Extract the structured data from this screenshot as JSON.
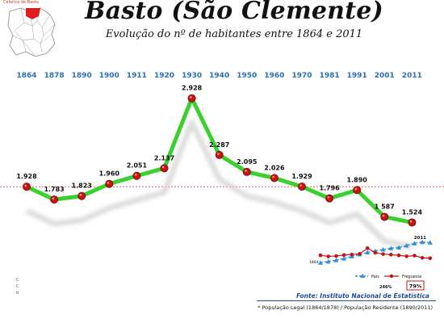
{
  "header": {
    "title": "Basto (São Clemente)",
    "subtitle": "Evolução do nº de habitantes entre 1864 e 2011",
    "map_label": "Celorico de Basto"
  },
  "chart_data": [
    {
      "type": "line",
      "title": "Basto (São Clemente)",
      "subtitle": "Evolução do nº de habitantes entre 1864 e 2011",
      "categories": [
        "1864",
        "1878",
        "1890",
        "1900",
        "1911",
        "1920",
        "1930",
        "1940",
        "1950",
        "1960",
        "1970",
        "1981",
        "1991",
        "2001",
        "2011"
      ],
      "labels": [
        "1.928",
        "1.783",
        "1.823",
        "1.960",
        "2.051",
        "2.137",
        "2.928",
        "2.287",
        "2.095",
        "2.026",
        "1.929",
        "1.796",
        "1.890",
        "1 587",
        "1.524"
      ],
      "values": [
        1928,
        1783,
        1823,
        1960,
        2051,
        2137,
        2928,
        2287,
        2095,
        2026,
        1929,
        1796,
        1890,
        1587,
        1524
      ],
      "ylim": [
        1300,
        3400
      ],
      "reference_line": 1928,
      "colors": {
        "line": "#39d12e",
        "marker": "#c41414",
        "year_labels": "#2b6fb7",
        "reference": "#e83030"
      }
    },
    {
      "type": "line",
      "inset": true,
      "series": [
        {
          "name": "País",
          "style": "dashed-triangles",
          "color": "#2f8fd8",
          "values": [
            100,
            108,
            118,
            130,
            145,
            160,
            175,
            185,
            195,
            205,
            210,
            225,
            240,
            250,
            246
          ]
        },
        {
          "name": "Freguesia",
          "style": "solid-circles",
          "color": "#c41414",
          "values": [
            100,
            92,
            95,
            102,
            106,
            111,
            152,
            119,
            109,
            105,
            100,
            93,
            98,
            82,
            79
          ]
        }
      ],
      "labels": {
        "top_right": "2011",
        "left": "1864",
        "pais_value": "246%",
        "freguesia_value": "79%"
      }
    }
  ],
  "footer": {
    "source": "Fonte: Instituto Nacional de Estatística",
    "note": "* População Legal (1864/1878) /  População Residente (1890/2011)",
    "left_marks": [
      "C",
      "C",
      "b"
    ]
  }
}
